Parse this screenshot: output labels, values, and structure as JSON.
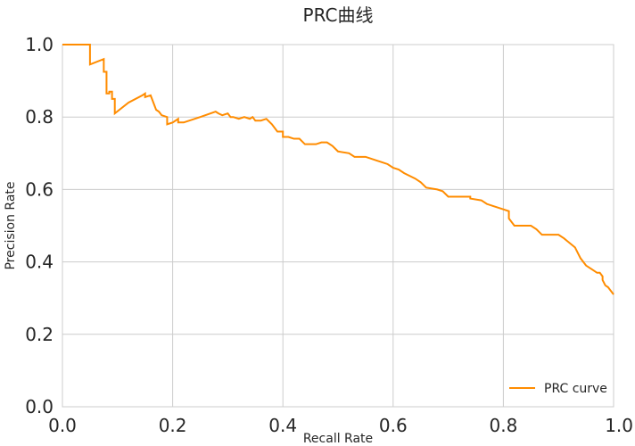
{
  "chart_data": {
    "type": "line",
    "title": "PRC曲线",
    "xlabel": "Recall Rate",
    "ylabel": "Precision Rate",
    "xlim": [
      0,
      1
    ],
    "ylim": [
      0,
      1
    ],
    "grid": true,
    "legend_position": "lower-right",
    "x_ticks": [
      "0.0",
      "0.2",
      "0.4",
      "0.6",
      "0.8",
      "1.0"
    ],
    "y_ticks": [
      "0.0",
      "0.2",
      "0.4",
      "0.6",
      "0.8",
      "1.0"
    ],
    "line_color": "#ff8c00",
    "series": [
      {
        "name": "PRC curve",
        "x": [
          0.0,
          0.05,
          0.05,
          0.075,
          0.075,
          0.08,
          0.08,
          0.085,
          0.085,
          0.09,
          0.09,
          0.095,
          0.095,
          0.12,
          0.145,
          0.15,
          0.15,
          0.16,
          0.165,
          0.17,
          0.175,
          0.18,
          0.19,
          0.19,
          0.2,
          0.21,
          0.21,
          0.22,
          0.25,
          0.278,
          0.283,
          0.29,
          0.3,
          0.305,
          0.31,
          0.32,
          0.33,
          0.34,
          0.345,
          0.35,
          0.36,
          0.37,
          0.37,
          0.38,
          0.385,
          0.39,
          0.4,
          0.4,
          0.41,
          0.42,
          0.43,
          0.44,
          0.45,
          0.46,
          0.47,
          0.48,
          0.49,
          0.5,
          0.52,
          0.53,
          0.55,
          0.57,
          0.58,
          0.59,
          0.6,
          0.61,
          0.62,
          0.64,
          0.65,
          0.66,
          0.68,
          0.69,
          0.7,
          0.74,
          0.74,
          0.76,
          0.77,
          0.78,
          0.8,
          0.81,
          0.81,
          0.82,
          0.84,
          0.85,
          0.86,
          0.87,
          0.88,
          0.9,
          0.91,
          0.93,
          0.94,
          0.95,
          0.96,
          0.97,
          0.975,
          0.98,
          0.98,
          0.985,
          0.99,
          1.0
        ],
        "y": [
          1.0,
          1.0,
          0.945,
          0.96,
          0.925,
          0.925,
          0.865,
          0.865,
          0.87,
          0.87,
          0.85,
          0.85,
          0.81,
          0.84,
          0.86,
          0.865,
          0.855,
          0.86,
          0.84,
          0.82,
          0.815,
          0.805,
          0.8,
          0.78,
          0.785,
          0.795,
          0.785,
          0.785,
          0.8,
          0.815,
          0.81,
          0.805,
          0.81,
          0.8,
          0.8,
          0.795,
          0.8,
          0.795,
          0.8,
          0.79,
          0.79,
          0.795,
          0.795,
          0.78,
          0.77,
          0.76,
          0.76,
          0.745,
          0.745,
          0.74,
          0.74,
          0.725,
          0.725,
          0.725,
          0.73,
          0.73,
          0.72,
          0.705,
          0.7,
          0.69,
          0.69,
          0.68,
          0.675,
          0.67,
          0.66,
          0.655,
          0.645,
          0.63,
          0.62,
          0.605,
          0.6,
          0.595,
          0.58,
          0.58,
          0.575,
          0.57,
          0.56,
          0.555,
          0.545,
          0.54,
          0.52,
          0.5,
          0.5,
          0.5,
          0.49,
          0.475,
          0.475,
          0.475,
          0.465,
          0.44,
          0.41,
          0.39,
          0.38,
          0.37,
          0.37,
          0.36,
          0.35,
          0.335,
          0.33,
          0.31
        ]
      }
    ]
  }
}
